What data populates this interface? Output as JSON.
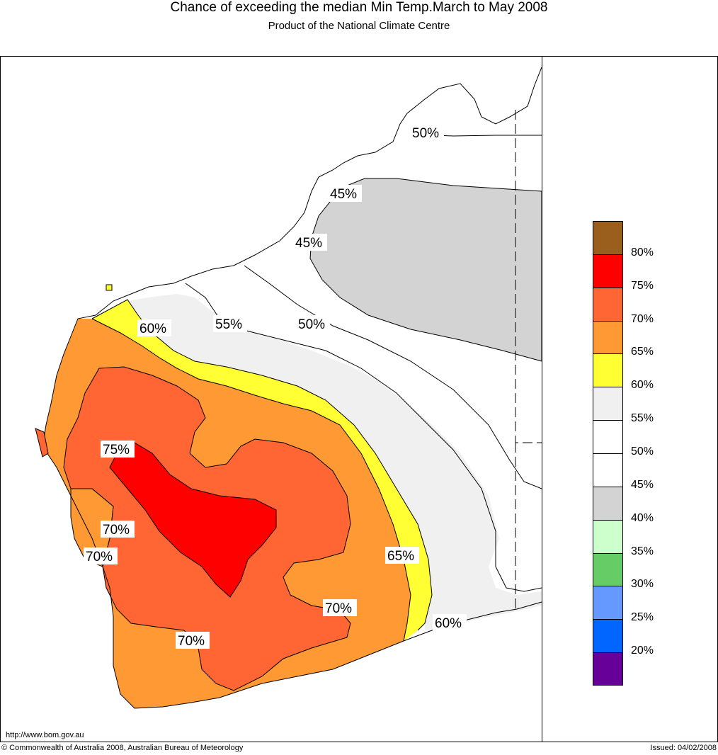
{
  "title": "Chance of exceeding the median Min Temp.March to May 2008",
  "subtitle": "Product of the National Climate Centre",
  "url": "http://www.bom.gov.au",
  "copyright": "© Commonwealth of Australia 2008, Australian Bureau of Meteorology",
  "issued": "Issued: 04/02/2008",
  "legend": {
    "labels": [
      "80%",
      "75%",
      "70%",
      "65%",
      "60%",
      "55%",
      "50%",
      "45%",
      "40%",
      "35%",
      "30%",
      "25%",
      "20%"
    ],
    "colors": [
      "#9a5f1c",
      "#ff0000",
      "#ff6633",
      "#ff9933",
      "#ffff33",
      "#f0f0f0",
      "#ffffff",
      "#ffffff",
      "#d3d3d3",
      "#ccffcc",
      "#66cc66",
      "#6699ff",
      "#0066ff",
      "#660099"
    ]
  },
  "contour_labels": {
    "c50_north": "50%",
    "c45_a": "45%",
    "c45_b": "45%",
    "c60_west": "60%",
    "c55": "55%",
    "c50_mid": "50%",
    "c75": "75%",
    "c70_a": "70%",
    "c70_b": "70%",
    "c65": "65%",
    "c70_c": "70%",
    "c70_d": "70%",
    "c60_south": "60%"
  }
}
